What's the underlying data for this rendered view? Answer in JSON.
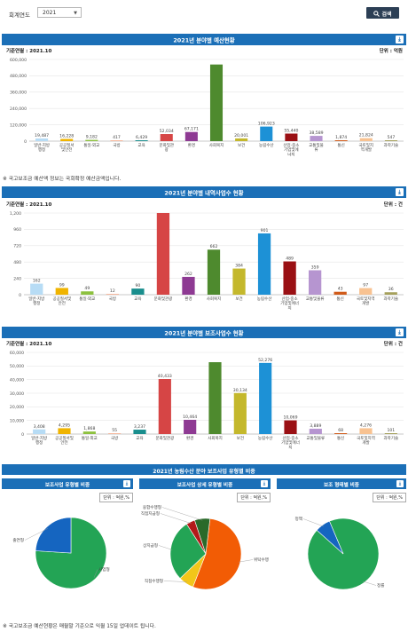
{
  "top": {
    "year_label": "회계연도",
    "year_value": "2021",
    "search_label": "검색"
  },
  "chart1": {
    "title": "2021년 분야별 예산현황",
    "base_date": "기준연월 : 2021.10",
    "unit": "단위 : 억원",
    "notice": "※ 국고보조금 예산액 정보는 국회확정 예산금액입니다."
  },
  "chart2": {
    "title": "2021년 분야별 내역사업수 현황",
    "base_date": "기준연월 : 2021.10",
    "unit": "단위 : 건"
  },
  "chart3": {
    "title": "2021년 분야별 보조사업수 현황",
    "base_date": "기준연월 : 2021.10",
    "unit": "단위 : 건"
  },
  "pies": {
    "section_title": "2021년 농림수산 분야 보조사업 유형별 비중",
    "p1_title": "보조사업 유형별 비중",
    "p2_title": "보조사업 상세 유형별 비중",
    "p3_title": "보조 형태별 비중",
    "unit": "단위 : 억원,%",
    "notice": "※ 국고보조금 예산현황은 매월말 기준으로 익월 15일 업데이트 됩니다."
  },
  "colors": {
    "header": "#1b6fb7",
    "series": [
      "#b7dcf5",
      "#f0b400",
      "#8dc13f",
      "#f6b89d",
      "#1a8e8d",
      "#d64545",
      "#8e3a93",
      "#4e8a2e",
      "#c4b82c",
      "#1d91d6",
      "#9a1014",
      "#b695d0",
      "#d05b1a",
      "#f8c291",
      "#a5a05a"
    ],
    "pie": [
      "#23a455",
      "#1565c0",
      "#f25c05",
      "#f2c61a",
      "#b31a1a",
      "#2a6a2a"
    ]
  },
  "chart_data": [
    {
      "type": "bar",
      "categories": [
        "일반·지방\n행정",
        "공공질서\n및안전",
        "통일·외교",
        "국방",
        "교육",
        "문화및관\n광",
        "환경",
        "사회복지",
        "보건",
        "농림수산",
        "산업·중소\n기업및에\n너지",
        "교통및물\n류",
        "통신",
        "국토및지\n역개발",
        "과학기술"
      ],
      "values": [
        19487,
        16228,
        9182,
        417,
        6429,
        52034,
        67171,
        563000,
        20001,
        106923,
        55440,
        38589,
        1874,
        21824,
        547
      ],
      "value_labels": [
        "19,487",
        "16,228",
        "9,182",
        "417",
        "6,429",
        "52,034",
        "67,171",
        "",
        "20,001",
        "106,923",
        "55,440",
        "38,589",
        "1,874",
        "21,824",
        "547"
      ],
      "yticks": [
        "0",
        "120,000",
        "240,000",
        "360,000",
        "480,000",
        "600,000"
      ],
      "ylim": [
        0,
        600000
      ]
    },
    {
      "type": "bar",
      "categories": [
        "일반·지방\n행정",
        "공공질서및\n안전",
        "통일·외교",
        "국방",
        "교육",
        "문화및관광",
        "환경",
        "사회복지",
        "보건",
        "농림수산",
        "산업·중소\n기업및에너\n지",
        "교통및물류",
        "통신",
        "국토및지역\n개발",
        "과학기술"
      ],
      "values": [
        162,
        99,
        49,
        12,
        90,
        1200,
        262,
        662,
        384,
        901,
        489,
        359,
        43,
        97,
        36
      ],
      "value_labels": [
        "162",
        "99",
        "49",
        "12",
        "90",
        "",
        "262",
        "662",
        "384",
        "901",
        "489",
        "359",
        "43",
        "97",
        "36"
      ],
      "yticks": [
        "0",
        "240",
        "480",
        "720",
        "960",
        "1,200"
      ],
      "ylim": [
        0,
        1200
      ]
    },
    {
      "type": "bar",
      "categories": [
        "일반·지방\n행정",
        "공공질서및\n안전",
        "통일·외교",
        "국방",
        "교육",
        "문화및관광",
        "환경",
        "사회복지",
        "보건",
        "농림수산",
        "산업·중소\n기업및에너\n지",
        "교통및물류",
        "통신",
        "국토및지역\n개발",
        "과학기술"
      ],
      "values": [
        3408,
        4295,
        1868,
        55,
        3237,
        40433,
        10464,
        52800,
        30134,
        52276,
        10069,
        3889,
        68,
        4276,
        101
      ],
      "value_labels": [
        "3,408",
        "4,295",
        "1,868",
        "55",
        "3,237",
        "40,433",
        "10,464",
        "",
        "30,134",
        "52,276",
        "10,069",
        "3,889",
        "68",
        "4,276",
        "101"
      ],
      "yticks": [
        "0",
        "10,000",
        "20,000",
        "30,000",
        "40,000",
        "50,000",
        "60,000"
      ],
      "ylim": [
        0,
        60000
      ]
    },
    {
      "type": "pie",
      "labels": [
        "사업형",
        "출연형"
      ],
      "values": [
        76,
        24
      ]
    },
    {
      "type": "pie",
      "labels": [
        "위탁수행",
        "직접수행형",
        "상지급형",
        "직접지급형",
        "융합수행형"
      ],
      "values": [
        54,
        7,
        28,
        4,
        7
      ]
    },
    {
      "type": "pie",
      "labels": [
        "정률",
        "정액"
      ],
      "values": [
        93,
        7
      ]
    }
  ]
}
